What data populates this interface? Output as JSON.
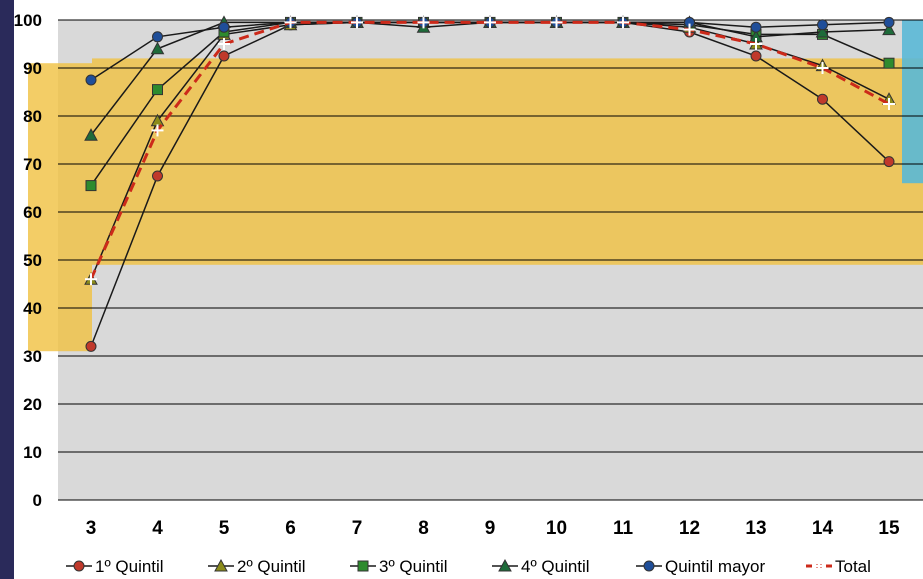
{
  "chart_data": {
    "type": "line",
    "title": "",
    "xlabel": "",
    "ylabel": "",
    "x": [
      3,
      4,
      5,
      6,
      7,
      8,
      9,
      10,
      11,
      12,
      13,
      14,
      15
    ],
    "ylim": [
      0,
      100
    ],
    "yticks": [
      0,
      10,
      20,
      30,
      40,
      50,
      60,
      70,
      80,
      90,
      100
    ],
    "grid": true,
    "legend_position": "bottom",
    "series": [
      {
        "name": "1º Quintil",
        "color": "#c0392b",
        "marker": "circle",
        "dash": false,
        "values": [
          32,
          67.5,
          92.5,
          99,
          99.5,
          99.5,
          99.5,
          99.5,
          99.5,
          97.5,
          92.5,
          83.5,
          70.5
        ]
      },
      {
        "name": "2º Quintil",
        "color": "#8b8b1a",
        "marker": "triangle",
        "dash": false,
        "values": [
          46,
          79,
          97,
          99,
          99.5,
          99.5,
          99.5,
          99.5,
          99.5,
          98.5,
          95,
          90.5,
          83.5
        ]
      },
      {
        "name": "3º Quintil",
        "color": "#2e8b2e",
        "marker": "square",
        "dash": false,
        "values": [
          65.5,
          85.5,
          97.5,
          99.5,
          99.5,
          99.5,
          99.5,
          99.5,
          99.5,
          99,
          97,
          97,
          91
        ]
      },
      {
        "name": "4º Quintil",
        "color": "#1e6b3a",
        "marker": "triangle",
        "dash": false,
        "values": [
          76,
          94,
          99.5,
          99.5,
          99.5,
          98.5,
          99.5,
          99.5,
          99.5,
          99.5,
          96.5,
          97.5,
          98
        ]
      },
      {
        "name": "Quintil mayor",
        "color": "#1f4e99",
        "marker": "circle",
        "dash": false,
        "values": [
          87.5,
          96.5,
          98.5,
          99.5,
          99.5,
          99.5,
          99.5,
          99.5,
          99.5,
          99.5,
          98.5,
          99,
          99.5
        ]
      },
      {
        "name": "Total",
        "color": "#cc2a1a",
        "marker": "plus",
        "dash": true,
        "values": [
          46,
          77,
          95,
          99.5,
          99.5,
          99.5,
          99.5,
          99.5,
          99.5,
          98,
          95,
          90,
          82.5
        ]
      }
    ],
    "shaded_bands": [
      {
        "x_from": 3,
        "x_to": 4,
        "y_from": 31,
        "y_to": 91,
        "color": "#f0c040"
      },
      {
        "x_from": 3,
        "x_to": 15,
        "y_from": 49,
        "y_to": 92,
        "color": "#f0c040"
      },
      {
        "x_from": 15,
        "x_to": 15,
        "y_from": 66,
        "y_to": 100,
        "color": "#5ab8d6"
      }
    ],
    "colors": {
      "plot_background": "#d9d9d9",
      "left_border": "#2a2a5a",
      "gridline": "#000000"
    }
  }
}
